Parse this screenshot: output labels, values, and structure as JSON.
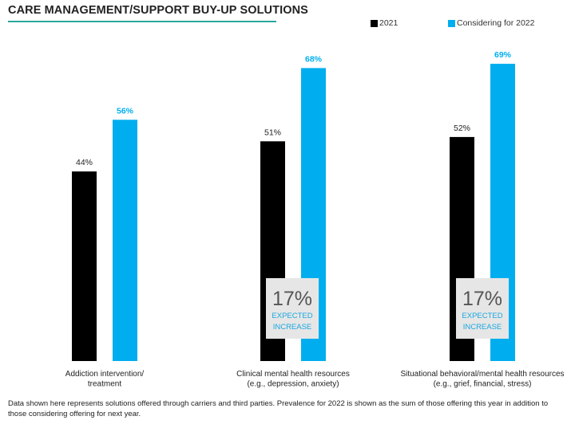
{
  "chart_data": {
    "type": "bar",
    "title": "CARE MANAGEMENT/SUPPORT BUY-UP SOLUTIONS",
    "categories": [
      [
        "Addiction intervention/",
        "treatment"
      ],
      [
        "Clinical mental health resources",
        "(e.g., depression, anxiety)"
      ],
      [
        "Situational behavioral/mental health resources",
        "(e.g., grief, financial, stress)"
      ]
    ],
    "series": [
      {
        "name": "2021",
        "values": [
          44,
          51,
          52
        ],
        "labels": [
          "44%",
          "51%",
          "52%"
        ],
        "color": "#000000"
      },
      {
        "name": "Considering for 2022",
        "values": [
          56,
          68,
          69
        ],
        "labels": [
          "56%",
          "68%",
          "69%"
        ],
        "color": "#00aeef"
      }
    ],
    "ylim": [
      0,
      100
    ],
    "grid": false,
    "legend_position": "top-right"
  },
  "callouts": [
    {
      "value": "17%",
      "line1": "EXPECTED",
      "line2": "INCREASE"
    },
    {
      "value": "17%",
      "line1": "EXPECTED",
      "line2": "INCREASE"
    }
  ],
  "footnote": "Data shown here represents solutions offered through carriers and third parties. Prevalence for 2022 is shown as the sum of those offering this year in addition to those considering offering for next year."
}
